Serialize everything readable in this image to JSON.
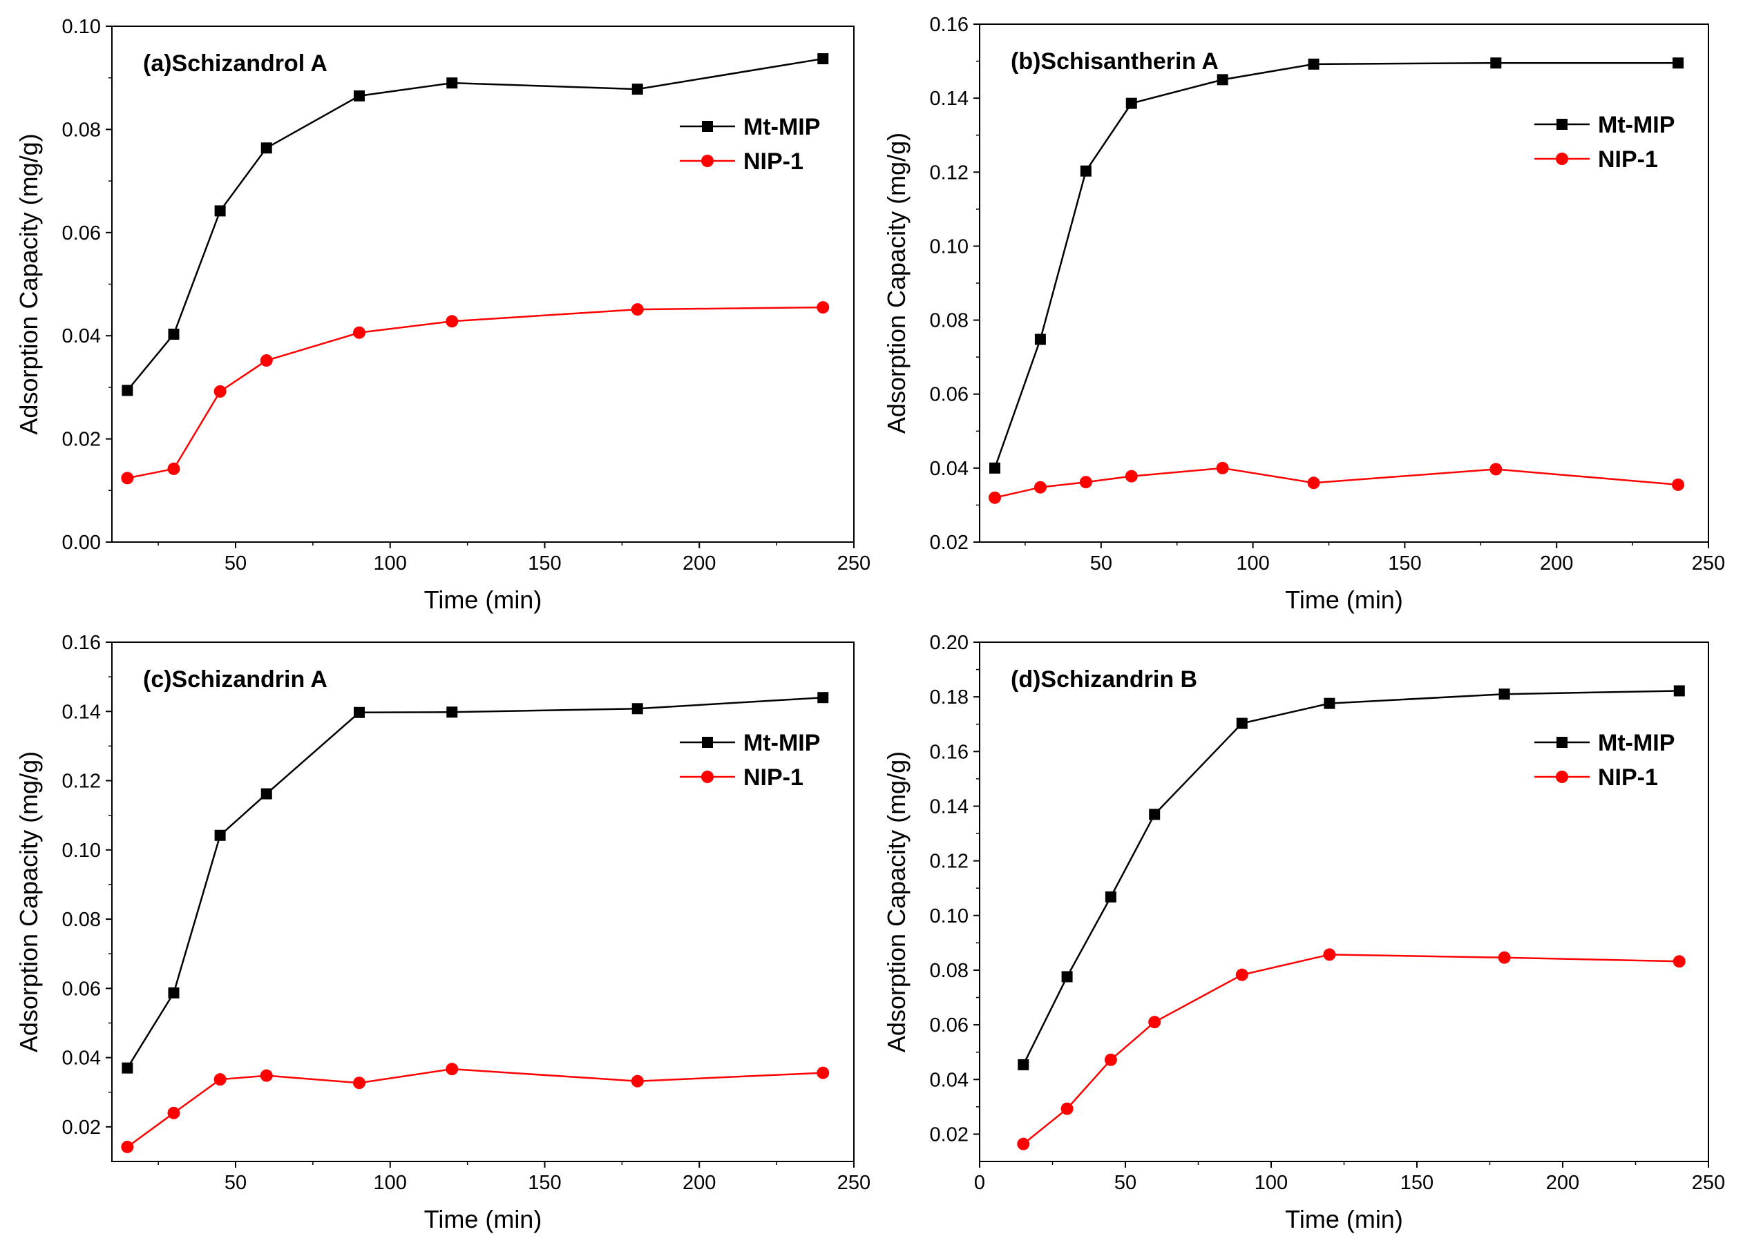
{
  "chart_data": [
    {
      "type": "line",
      "title": "(a)Schizandrol A",
      "xlabel": "Time (min)",
      "ylabel": "Adsorption Capacity (mg/g)",
      "xlim": [
        10,
        250
      ],
      "ylim": [
        0.0,
        0.1
      ],
      "xticks": [
        50,
        100,
        150,
        200,
        250
      ],
      "yticks": [
        0.0,
        0.02,
        0.04,
        0.06,
        0.08,
        0.1
      ],
      "xtick_labels": [
        "50",
        "100",
        "150",
        "200",
        "250"
      ],
      "ytick_labels": [
        "0.00",
        "0.02",
        "0.04",
        "0.06",
        "0.08",
        "0.10"
      ],
      "x": [
        15,
        30,
        45,
        60,
        90,
        120,
        180,
        240
      ],
      "legend_position": "top-right",
      "series": [
        {
          "name": "Mt-MIP",
          "color": "#000000",
          "marker": "square",
          "values": [
            0.0294,
            0.0403,
            0.0642,
            0.0764,
            0.0865,
            0.089,
            0.0878,
            0.0937
          ]
        },
        {
          "name": "NIP-1",
          "color": "#ff0000",
          "marker": "circle",
          "values": [
            0.0124,
            0.0142,
            0.0292,
            0.0352,
            0.0406,
            0.0428,
            0.0451,
            0.0455
          ]
        }
      ]
    },
    {
      "type": "line",
      "title": "(b)Schisantherin A",
      "xlabel": "Time (min)",
      "ylabel": "Adsorption Capacity (mg/g)",
      "xlim": [
        10,
        250
      ],
      "ylim": [
        0.02,
        0.16
      ],
      "xticks": [
        50,
        100,
        150,
        200,
        250
      ],
      "yticks": [
        0.02,
        0.04,
        0.06,
        0.08,
        0.1,
        0.12,
        0.14,
        0.16
      ],
      "xtick_labels": [
        "50",
        "100",
        "150",
        "200",
        "250"
      ],
      "ytick_labels": [
        "0.02",
        "0.04",
        "0.06",
        "0.08",
        "0.10",
        "0.12",
        "0.14",
        "0.16"
      ],
      "x": [
        15,
        30,
        45,
        60,
        90,
        120,
        180,
        240
      ],
      "legend_position": "top-right",
      "series": [
        {
          "name": "Mt-MIP",
          "color": "#000000",
          "marker": "square",
          "values": [
            0.04,
            0.0748,
            0.1203,
            0.1386,
            0.145,
            0.1492,
            0.1495,
            0.1495
          ]
        },
        {
          "name": "NIP-1",
          "color": "#ff0000",
          "marker": "circle",
          "values": [
            0.032,
            0.0348,
            0.0362,
            0.0378,
            0.04,
            0.036,
            0.0397,
            0.0355
          ]
        }
      ]
    },
    {
      "type": "line",
      "title": "(c)Schizandrin A",
      "xlabel": "Time (min)",
      "ylabel": "Adsorption Capacity (mg/g)",
      "xlim": [
        10,
        250
      ],
      "ylim": [
        0.01,
        0.16
      ],
      "xticks": [
        50,
        100,
        150,
        200,
        250
      ],
      "yticks": [
        0.02,
        0.04,
        0.06,
        0.08,
        0.1,
        0.12,
        0.14,
        0.16
      ],
      "xtick_labels": [
        "50",
        "100",
        "150",
        "200",
        "250"
      ],
      "ytick_labels": [
        "0.02",
        "0.04",
        "0.06",
        "0.08",
        "0.10",
        "0.12",
        "0.14",
        "0.16"
      ],
      "x": [
        15,
        30,
        45,
        60,
        90,
        120,
        180,
        240
      ],
      "legend_position": "top-right",
      "series": [
        {
          "name": "Mt-MIP",
          "color": "#000000",
          "marker": "square",
          "values": [
            0.037,
            0.0587,
            0.1042,
            0.1162,
            0.1397,
            0.1398,
            0.1408,
            0.144
          ]
        },
        {
          "name": "NIP-1",
          "color": "#ff0000",
          "marker": "circle",
          "values": [
            0.0142,
            0.024,
            0.0337,
            0.0348,
            0.0327,
            0.0367,
            0.0332,
            0.0356
          ]
        }
      ]
    },
    {
      "type": "line",
      "title": "(d)Schizandrin B",
      "xlabel": "Time (min)",
      "ylabel": "Adsorption Capacity (mg/g)",
      "xlim": [
        0,
        250
      ],
      "ylim": [
        0.01,
        0.2
      ],
      "xticks": [
        0,
        50,
        100,
        150,
        200,
        250
      ],
      "yticks": [
        0.02,
        0.04,
        0.06,
        0.08,
        0.1,
        0.12,
        0.14,
        0.16,
        0.18,
        0.2
      ],
      "xtick_labels": [
        "0",
        "50",
        "100",
        "150",
        "200",
        "250"
      ],
      "ytick_labels": [
        "0.02",
        "0.04",
        "0.06",
        "0.08",
        "0.10",
        "0.12",
        "0.14",
        "0.16",
        "0.18",
        "0.20"
      ],
      "x": [
        15,
        30,
        45,
        60,
        90,
        120,
        180,
        240
      ],
      "legend_position": "top-right",
      "series": [
        {
          "name": "Mt-MIP",
          "color": "#000000",
          "marker": "square",
          "values": [
            0.0454,
            0.0776,
            0.1068,
            0.137,
            0.1703,
            0.1776,
            0.181,
            0.1822
          ]
        },
        {
          "name": "NIP-1",
          "color": "#ff0000",
          "marker": "circle",
          "values": [
            0.0164,
            0.0293,
            0.0472,
            0.061,
            0.0783,
            0.0857,
            0.0846,
            0.0832
          ]
        }
      ]
    }
  ]
}
